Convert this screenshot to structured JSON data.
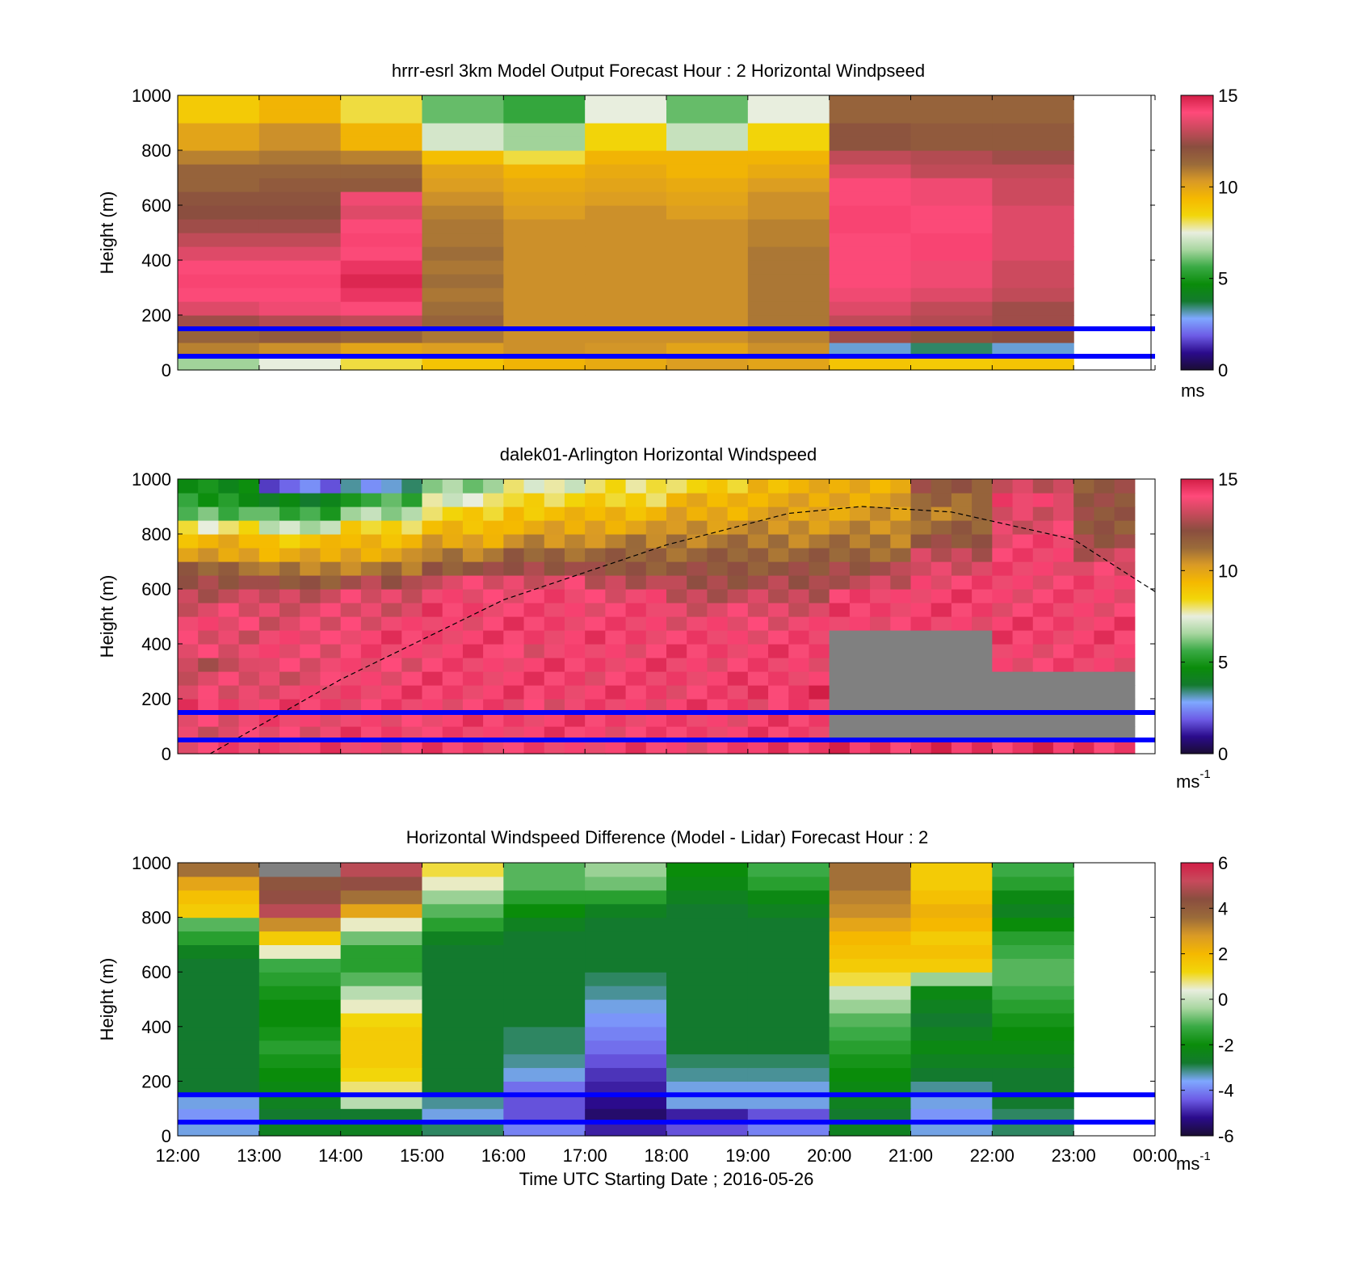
{
  "colors": {
    "background": "#ffffff",
    "reference_line": "#0000ff",
    "no_data": "#808080",
    "speed_scale": [
      "#1a0d33",
      "#2b0b8c",
      "#6d5ce6",
      "#7fa8ff",
      "#137a2e",
      "#0a8c0a",
      "#3aaa45",
      "#a8d6a0",
      "#e8eede",
      "#f2d60a",
      "#f5b800",
      "#d99a26",
      "#9a6a3a",
      "#8a4e3f",
      "#c84a5c",
      "#ff4a7a",
      "#d21e46"
    ],
    "diff_scale": [
      "#1a0d33",
      "#2b0b8c",
      "#6d5ce6",
      "#7fa8ff",
      "#137a2e",
      "#0a8c0a",
      "#3aaa45",
      "#a8d6a0",
      "#e8eede",
      "#f2d60a",
      "#f5b800",
      "#d99a26",
      "#9a6a3a",
      "#8a4e3f",
      "#c84a5c",
      "#d21e46"
    ]
  },
  "chart_data": [
    {
      "type": "heatmap",
      "title": "hrrr-esrl 3km Model Output   Forecast Hour : 2 Horizontal Windpseed",
      "xlabel": "",
      "ylabel": "Height (m)",
      "xlim": [
        "12:00",
        "00:00"
      ],
      "ylim": [
        0,
        1000
      ],
      "yticks": [
        0,
        200,
        400,
        600,
        800,
        1000
      ],
      "colorbar": {
        "min": 0,
        "max": 15,
        "ticks": [
          0,
          5,
          10,
          15
        ],
        "label": "ms",
        "label_sup": ""
      },
      "reference_lines_m": [
        50,
        150
      ],
      "x_hours": [
        "12:00",
        "13:00",
        "14:00",
        "15:00",
        "16:00",
        "17:00",
        "18:00",
        "19:00",
        "20:00",
        "21:00",
        "22:00"
      ],
      "y_heights_m": [
        25,
        75,
        125,
        175,
        225,
        275,
        325,
        375,
        425,
        475,
        525,
        575,
        625,
        675,
        725,
        775,
        825,
        875,
        925,
        975
      ],
      "values_ms": [
        [
          6.5,
          7.5,
          8.2,
          9.0,
          9.5,
          9.8,
          10.2,
          10.0,
          9.0,
          8.8,
          9.0
        ],
        [
          10.8,
          10.5,
          10.0,
          10.2,
          10.5,
          10.4,
          10.0,
          10.5,
          3.0,
          3.5,
          3.0
        ],
        [
          11.5,
          11.8,
          11.5,
          11.0,
          10.5,
          10.5,
          10.5,
          10.8,
          12.5,
          12.0,
          12.2
        ],
        [
          12.5,
          12.8,
          13.0,
          11.5,
          10.5,
          10.5,
          10.5,
          11.0,
          13.0,
          12.8,
          12.5
        ],
        [
          13.5,
          13.8,
          14.0,
          11.2,
          10.5,
          10.5,
          10.5,
          11.0,
          13.5,
          13.0,
          12.5
        ],
        [
          14.0,
          14.0,
          14.5,
          11.0,
          10.5,
          10.5,
          10.5,
          11.0,
          13.8,
          13.5,
          13.0
        ],
        [
          14.2,
          14.2,
          14.8,
          11.2,
          10.5,
          10.5,
          10.5,
          11.0,
          14.0,
          13.8,
          13.2
        ],
        [
          14.0,
          14.0,
          14.5,
          11.0,
          10.5,
          10.5,
          10.5,
          11.0,
          14.0,
          13.8,
          13.2
        ],
        [
          13.5,
          13.5,
          14.0,
          11.2,
          10.5,
          10.5,
          10.5,
          11.0,
          14.0,
          14.2,
          13.5
        ],
        [
          13.0,
          13.0,
          14.2,
          11.0,
          10.5,
          10.5,
          10.5,
          10.8,
          14.0,
          14.2,
          13.5
        ],
        [
          12.5,
          12.5,
          14.0,
          11.0,
          10.5,
          10.5,
          10.5,
          10.8,
          14.2,
          14.0,
          13.5
        ],
        [
          12.2,
          12.2,
          13.5,
          10.8,
          10.2,
          10.5,
          10.2,
          10.5,
          14.2,
          14.0,
          13.5
        ],
        [
          12.0,
          12.0,
          13.8,
          10.5,
          10.0,
          10.2,
          10.0,
          10.5,
          14.0,
          13.8,
          13.2
        ],
        [
          11.5,
          11.8,
          11.8,
          10.2,
          9.8,
          10.0,
          9.8,
          10.2,
          14.0,
          13.8,
          13.2
        ],
        [
          11.5,
          11.5,
          11.5,
          10.0,
          9.5,
          9.8,
          9.5,
          9.8,
          13.5,
          13.0,
          13.0
        ],
        [
          10.8,
          11.0,
          10.8,
          9.2,
          8.2,
          9.5,
          9.5,
          9.5,
          13.0,
          12.8,
          12.5
        ],
        [
          10.0,
          10.5,
          9.5,
          7.2,
          6.5,
          8.5,
          7.0,
          8.5,
          12.0,
          11.8,
          11.8
        ],
        [
          10.0,
          10.5,
          9.5,
          7.2,
          6.5,
          8.5,
          7.0,
          8.5,
          12.0,
          11.8,
          11.8
        ],
        [
          8.8,
          9.5,
          8.2,
          6.0,
          5.5,
          7.5,
          6.0,
          7.5,
          11.5,
          11.5,
          11.5
        ],
        [
          8.8,
          9.5,
          8.2,
          6.0,
          5.5,
          7.5,
          6.0,
          7.5,
          11.5,
          11.5,
          11.5
        ]
      ]
    },
    {
      "type": "heatmap",
      "title": "dalek01-Arlington  Horizontal Windspeed",
      "xlabel": "",
      "ylabel": "Height (m)",
      "xlim": [
        "12:00",
        "00:00"
      ],
      "ylim": [
        0,
        1000
      ],
      "yticks": [
        0,
        200,
        400,
        600,
        800,
        1000
      ],
      "colorbar": {
        "min": 0,
        "max": 15,
        "ticks": [
          0,
          5,
          10,
          15
        ],
        "label": "ms",
        "label_sup": "-1"
      },
      "reference_lines_m": [
        50,
        150
      ],
      "columns_per_hour": 4,
      "n_columns": 47,
      "y_heights_m": [
        25,
        75,
        125,
        175,
        225,
        275,
        325,
        375,
        425,
        475,
        525,
        575,
        625,
        675,
        725,
        775,
        825,
        875,
        925,
        975
      ],
      "no_data_below_m_by_hour": [
        null,
        null,
        null,
        null,
        null,
        null,
        null,
        null,
        440,
        460,
        300,
        320
      ],
      "values_ms_by_hour": [
        [
          14.0,
          13.5,
          13.8,
          14.2,
          13.5,
          13.5,
          13.0,
          13.8,
          13.5,
          13.8,
          13.5,
          13.0,
          12.5,
          11.5,
          10.0,
          9.5,
          8.0,
          6.0,
          5.0,
          4.5
        ],
        [
          14.2,
          13.8,
          14.0,
          14.2,
          13.8,
          13.5,
          13.8,
          13.8,
          13.8,
          13.5,
          13.5,
          13.2,
          12.0,
          10.8,
          9.8,
          9.0,
          7.0,
          5.5,
          4.0,
          2.0
        ],
        [
          14.0,
          14.2,
          13.8,
          14.0,
          14.2,
          14.0,
          13.8,
          14.0,
          14.2,
          13.8,
          13.5,
          13.5,
          12.5,
          11.0,
          10.0,
          9.5,
          8.5,
          6.5,
          5.5,
          3.0
        ],
        [
          14.2,
          14.0,
          14.2,
          14.0,
          14.2,
          14.2,
          14.0,
          14.2,
          14.2,
          14.0,
          14.2,
          13.8,
          13.5,
          12.0,
          11.0,
          10.0,
          9.2,
          8.5,
          7.5,
          6.5
        ],
        [
          14.0,
          14.2,
          14.2,
          13.8,
          14.2,
          14.2,
          14.2,
          13.8,
          14.2,
          14.2,
          14.0,
          14.0,
          13.5,
          12.5,
          11.5,
          10.5,
          9.8,
          9.2,
          8.5,
          7.5
        ],
        [
          14.2,
          14.0,
          14.2,
          14.0,
          14.2,
          14.0,
          14.2,
          14.0,
          14.2,
          14.0,
          14.0,
          13.8,
          13.0,
          12.0,
          11.5,
          10.8,
          10.0,
          9.5,
          8.5,
          8.0
        ],
        [
          14.0,
          14.2,
          14.0,
          14.2,
          14.0,
          14.2,
          14.0,
          14.2,
          14.0,
          13.8,
          13.5,
          13.0,
          12.5,
          12.0,
          11.5,
          11.0,
          10.5,
          9.8,
          9.5,
          8.5
        ],
        [
          14.5,
          14.2,
          14.2,
          14.0,
          14.5,
          14.2,
          14.0,
          14.2,
          14.0,
          13.8,
          13.5,
          13.0,
          12.5,
          12.0,
          11.5,
          11.0,
          10.5,
          10.0,
          9.8,
          9.5
        ],
        [
          14.5,
          14.2,
          14.0,
          14.0,
          14.0,
          14.0,
          14.0,
          14.0,
          14.0,
          14.0,
          14.2,
          14.0,
          13.0,
          12.5,
          11.5,
          11.0,
          10.5,
          10.2,
          10.0,
          9.8
        ],
        [
          14.5,
          14.2,
          14.0,
          14.0,
          14.0,
          14.0,
          14.0,
          14.0,
          14.0,
          14.0,
          14.2,
          14.2,
          14.0,
          13.5,
          13.0,
          12.0,
          11.5,
          11.0,
          11.5,
          12.0
        ],
        [
          14.5,
          14.2,
          14.0,
          14.0,
          14.0,
          14.0,
          14.0,
          14.0,
          14.2,
          14.2,
          14.0,
          14.0,
          14.0,
          14.0,
          14.0,
          14.0,
          13.5,
          13.5,
          14.0,
          13.0
        ],
        [
          14.5,
          14.2,
          14.0,
          14.0,
          14.0,
          14.0,
          14.0,
          14.0,
          14.2,
          14.2,
          14.0,
          14.0,
          14.0,
          13.5,
          13.0,
          12.5,
          12.0,
          12.0,
          12.0,
          12.0
        ]
      ],
      "curve_label": "",
      "curve_points_hour_height": [
        [
          0.4,
          0
        ],
        [
          2,
          270
        ],
        [
          4,
          560
        ],
        [
          6,
          760
        ],
        [
          7.5,
          875
        ],
        [
          8.4,
          900
        ],
        [
          9.5,
          880
        ],
        [
          11,
          780
        ],
        [
          12,
          590
        ]
      ]
    },
    {
      "type": "heatmap",
      "title": "Horizontal Windspeed Difference (Model - Lidar) Forecast Hour : 2",
      "xlabel": "Time UTC  Starting Date ; 2016-05-26",
      "ylabel": "Height (m)",
      "xlim": [
        "12:00",
        "00:00"
      ],
      "xticks": [
        "12:00",
        "13:00",
        "14:00",
        "15:00",
        "16:00",
        "17:00",
        "18:00",
        "19:00",
        "20:00",
        "21:00",
        "22:00",
        "23:00",
        "00:00"
      ],
      "ylim": [
        0,
        1000
      ],
      "yticks": [
        0,
        200,
        400,
        600,
        800,
        1000
      ],
      "colorbar": {
        "min": -6,
        "max": 6,
        "ticks": [
          -6,
          -4,
          -2,
          0,
          2,
          4,
          6
        ],
        "label": "ms",
        "label_sup": "-1"
      },
      "reference_lines_m": [
        50,
        150
      ],
      "x_hours": [
        "12:00",
        "13:00",
        "14:00",
        "15:00",
        "16:00",
        "17:00",
        "18:00",
        "19:00",
        "20:00",
        "21:00",
        "22:00"
      ],
      "y_heights_m": [
        25,
        75,
        125,
        175,
        225,
        275,
        325,
        375,
        425,
        475,
        525,
        575,
        625,
        675,
        725,
        775,
        825,
        875,
        925,
        975
      ],
      "values_ms": [
        [
          -3.5,
          -2.5,
          -2.5,
          -3.0,
          -4.0,
          -5.0,
          -4.5,
          -4.0,
          -2.5,
          -3.5,
          -3.0
        ],
        [
          -3.8,
          -2.8,
          -2.8,
          -3.5,
          -4.5,
          -5.5,
          -5.0,
          -4.5,
          -2.8,
          -3.8,
          -3.0
        ],
        [
          -3.5,
          -2.5,
          -0.2,
          -3.2,
          -4.5,
          -5.2,
          -3.5,
          -3.5,
          -2.5,
          -3.5,
          -2.8
        ],
        [
          -2.8,
          -2.2,
          0.8,
          -2.8,
          -4.2,
          -5.0,
          -3.5,
          -3.5,
          -2.2,
          -3.2,
          -2.8
        ],
        [
          -2.8,
          -2.0,
          1.2,
          -2.8,
          -3.5,
          -4.8,
          -3.2,
          -3.2,
          -2.0,
          -2.8,
          -2.8
        ],
        [
          -2.8,
          -1.8,
          1.5,
          -2.8,
          -3.2,
          -4.5,
          -3.0,
          -3.0,
          -1.8,
          -2.5,
          -2.5
        ],
        [
          -2.8,
          -1.5,
          1.5,
          -2.8,
          -3.0,
          -4.2,
          -2.8,
          -2.8,
          -1.5,
          -2.2,
          -2.2
        ],
        [
          -2.8,
          -1.8,
          1.5,
          -2.8,
          -3.0,
          -4.0,
          -2.8,
          -2.8,
          -1.2,
          -2.5,
          -2.0
        ],
        [
          -2.8,
          -2.0,
          1.2,
          -2.8,
          -2.8,
          -3.8,
          -2.8,
          -2.8,
          -1.0,
          -2.8,
          -1.8
        ],
        [
          -2.8,
          -2.0,
          0.5,
          -2.8,
          -2.8,
          -3.5,
          -2.8,
          -2.8,
          -0.5,
          -2.5,
          -1.5
        ],
        [
          -2.8,
          -1.8,
          -0.2,
          -2.8,
          -2.8,
          -3.2,
          -2.8,
          -2.8,
          0.0,
          -2.2,
          -1.2
        ],
        [
          -2.8,
          -1.5,
          -1.0,
          -2.8,
          -2.8,
          -3.0,
          -2.8,
          -2.8,
          1.0,
          -0.5,
          -1.0
        ],
        [
          -2.8,
          -1.2,
          -1.5,
          -2.8,
          -2.8,
          -2.8,
          -2.8,
          -2.8,
          1.5,
          1.5,
          -1.0
        ],
        [
          -2.5,
          0.5,
          -1.5,
          -2.8,
          -2.8,
          -2.8,
          -2.8,
          -2.8,
          1.8,
          1.8,
          -1.2
        ],
        [
          -1.5,
          1.5,
          -0.8,
          -2.5,
          -2.8,
          -2.8,
          -2.8,
          -2.8,
          2.0,
          1.5,
          -1.5
        ],
        [
          -1.0,
          3.0,
          0.5,
          -1.5,
          -2.5,
          -2.8,
          -2.8,
          -2.8,
          2.5,
          2.0,
          -2.0
        ],
        [
          1.5,
          5.0,
          2.5,
          -1.0,
          -2.0,
          -2.5,
          -2.8,
          -2.5,
          3.0,
          2.2,
          -2.5
        ],
        [
          1.8,
          4.5,
          3.5,
          -0.5,
          -1.5,
          -1.5,
          -2.5,
          -2.2,
          3.2,
          1.8,
          -2.2
        ],
        [
          2.5,
          4.2,
          4.5,
          0.5,
          -1.0,
          -0.8,
          -2.2,
          -1.5,
          3.5,
          1.5,
          -1.5
        ],
        [
          3.5,
          null,
          5.0,
          1.0,
          -1.0,
          -0.5,
          -2.0,
          -1.2,
          3.5,
          1.5,
          -1.2
        ]
      ]
    }
  ]
}
